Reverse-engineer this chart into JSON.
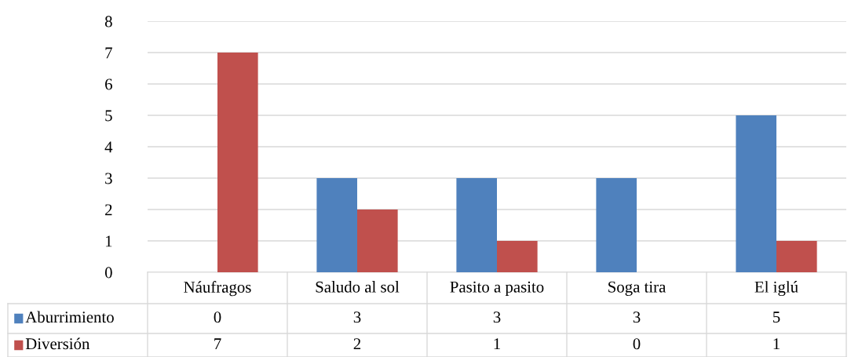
{
  "chart_data": {
    "type": "bar",
    "categories": [
      "Náufragos",
      "Saludo al sol",
      "Pasito a pasito",
      "Soga tira",
      "El iglú"
    ],
    "series": [
      {
        "name": "Aburrimiento",
        "color": "#4f81bd",
        "values": [
          0,
          3,
          3,
          3,
          5
        ]
      },
      {
        "name": "Diversión",
        "color": "#c0504d",
        "values": [
          7,
          2,
          1,
          0,
          1
        ]
      }
    ],
    "ylim": [
      0,
      8
    ],
    "yticks": [
      0,
      1,
      2,
      3,
      4,
      5,
      6,
      7,
      8
    ],
    "grid": "y",
    "data_labels": true,
    "legend": "bottom left"
  }
}
